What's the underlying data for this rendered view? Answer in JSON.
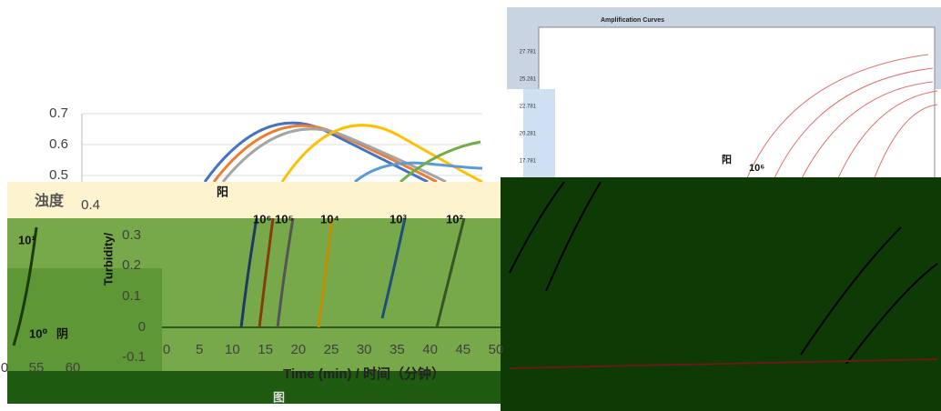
{
  "left_chart": {
    "y_axis_label": "浊度",
    "y_axis_label_en": "Turbidity/",
    "x_axis_label": "Time (min) / 时间（分钟）",
    "figure_label": "图",
    "yticks": [
      "0.7",
      "0.6",
      "0.5",
      "0.4",
      "0.3",
      "0.2",
      "0.1",
      "0",
      "-0.1"
    ],
    "xticks": [
      "0",
      "5",
      "10",
      "15",
      "20",
      "25",
      "30",
      "35",
      "40",
      "45",
      "50"
    ],
    "xticks_fragment": [
      "0",
      "55",
      "60"
    ],
    "annotations": [
      "阳",
      "10⁶",
      "10⁵",
      "10⁴",
      "10³",
      "10²",
      "10¹",
      "10⁰",
      "阴"
    ]
  },
  "right_chart": {
    "title": "Amplification Curves",
    "yticks": [
      "27.781",
      "25.281",
      "22.781",
      "20.281",
      "17.781"
    ],
    "annotations": [
      "阳",
      "10⁶"
    ]
  }
}
